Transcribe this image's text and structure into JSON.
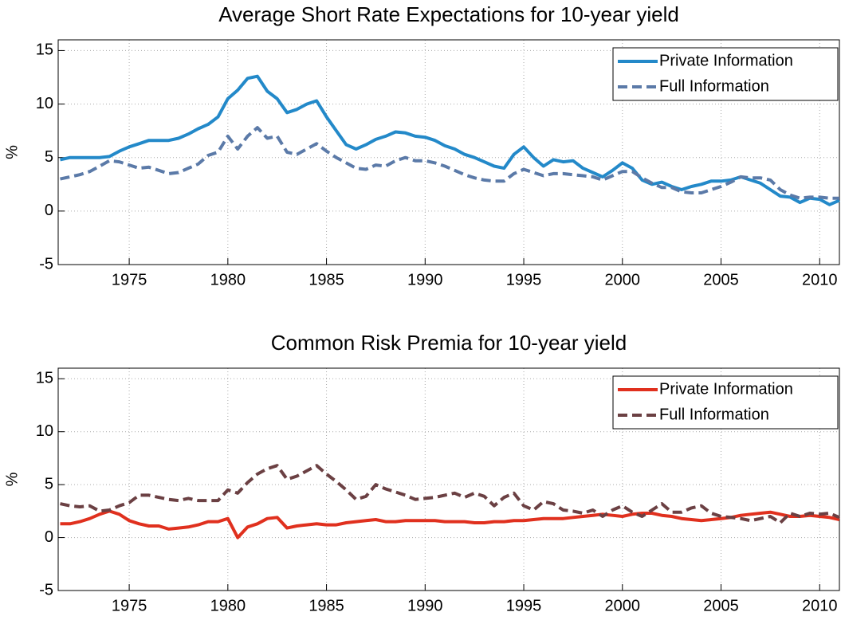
{
  "chart_data": [
    {
      "type": "line",
      "title": "Average Short Rate Expectations for 10-year yield",
      "ylabel": "%",
      "x": [
        1971.5,
        1972,
        1972.5,
        1973,
        1973.5,
        1974,
        1974.5,
        1975,
        1975.5,
        1976,
        1976.5,
        1977,
        1977.5,
        1978,
        1978.5,
        1979,
        1979.5,
        1980,
        1980.5,
        1981,
        1981.5,
        1982,
        1982.5,
        1983,
        1983.5,
        1984,
        1984.5,
        1985,
        1985.5,
        1986,
        1986.5,
        1987,
        1987.5,
        1988,
        1988.5,
        1989,
        1989.5,
        1990,
        1990.5,
        1991,
        1991.5,
        1992,
        1992.5,
        1993,
        1993.5,
        1994,
        1994.5,
        1995,
        1995.5,
        1996,
        1996.5,
        1997,
        1997.5,
        1998,
        1998.5,
        1999,
        1999.5,
        2000,
        2000.5,
        2001,
        2001.5,
        2002,
        2002.5,
        2003,
        2003.5,
        2004,
        2004.5,
        2005,
        2005.5,
        2006,
        2006.5,
        2007,
        2007.5,
        2008,
        2008.5,
        2009,
        2009.5,
        2010,
        2010.5,
        2011
      ],
      "series": [
        {
          "name": "Private Information",
          "color": "#2389c9",
          "linestyle": "solid",
          "values": [
            4.8,
            5.0,
            5.0,
            5.0,
            5.0,
            5.1,
            5.6,
            6.0,
            6.3,
            6.6,
            6.6,
            6.6,
            6.8,
            7.2,
            7.7,
            8.1,
            8.8,
            10.5,
            11.3,
            12.4,
            12.6,
            11.2,
            10.5,
            9.2,
            9.5,
            10.0,
            10.3,
            8.8,
            7.5,
            6.2,
            5.8,
            6.2,
            6.7,
            7.0,
            7.4,
            7.3,
            7.0,
            6.9,
            6.6,
            6.1,
            5.8,
            5.3,
            5.0,
            4.6,
            4.2,
            4.0,
            5.3,
            6.0,
            5.0,
            4.2,
            4.8,
            4.6,
            4.7,
            4.0,
            3.6,
            3.2,
            3.8,
            4.5,
            4.0,
            2.9,
            2.5,
            2.7,
            2.3,
            2.0,
            2.3,
            2.5,
            2.8,
            2.8,
            2.9,
            3.2,
            2.9,
            2.6,
            2.0,
            1.4,
            1.3,
            0.8,
            1.2,
            1.1,
            0.6,
            1.0
          ]
        },
        {
          "name": "Full Information",
          "color": "#5b7aa8",
          "linestyle": "dashed",
          "values": [
            3.0,
            3.2,
            3.4,
            3.7,
            4.2,
            4.7,
            4.6,
            4.3,
            4.0,
            4.1,
            3.8,
            3.5,
            3.6,
            4.0,
            4.4,
            5.2,
            5.5,
            7.0,
            5.8,
            7.0,
            7.8,
            6.8,
            7.0,
            5.5,
            5.3,
            5.8,
            6.3,
            5.6,
            5.0,
            4.5,
            4.0,
            3.9,
            4.3,
            4.2,
            4.7,
            5.0,
            4.7,
            4.7,
            4.5,
            4.2,
            3.8,
            3.4,
            3.1,
            2.9,
            2.8,
            2.8,
            3.5,
            3.9,
            3.6,
            3.3,
            3.5,
            3.5,
            3.4,
            3.3,
            3.2,
            2.9,
            3.3,
            3.7,
            3.7,
            3.1,
            2.6,
            2.2,
            2.2,
            1.8,
            1.7,
            1.7,
            2.0,
            2.3,
            2.7,
            3.2,
            3.1,
            3.1,
            2.9,
            2.0,
            1.5,
            1.2,
            1.3,
            1.3,
            1.2,
            1.2
          ]
        }
      ],
      "xlim": [
        1971.4,
        2011
      ],
      "ylim": [
        -5,
        16
      ],
      "xticks": [
        1975,
        1980,
        1985,
        1990,
        1995,
        2000,
        2005,
        2010
      ],
      "yticks": [
        -5,
        0,
        5,
        10,
        15
      ],
      "grid": true,
      "legend": "upper right"
    },
    {
      "type": "line",
      "title": "Common Risk Premia for 10-year yield",
      "ylabel": "%",
      "x": [
        1971.5,
        1972,
        1972.5,
        1973,
        1973.5,
        1974,
        1974.5,
        1975,
        1975.5,
        1976,
        1976.5,
        1977,
        1977.5,
        1978,
        1978.5,
        1979,
        1979.5,
        1980,
        1980.5,
        1981,
        1981.5,
        1982,
        1982.5,
        1983,
        1983.5,
        1984,
        1984.5,
        1985,
        1985.5,
        1986,
        1986.5,
        1987,
        1987.5,
        1988,
        1988.5,
        1989,
        1989.5,
        1990,
        1990.5,
        1991,
        1991.5,
        1992,
        1992.5,
        1993,
        1993.5,
        1994,
        1994.5,
        1995,
        1995.5,
        1996,
        1996.5,
        1997,
        1997.5,
        1998,
        1998.5,
        1999,
        1999.5,
        2000,
        2000.5,
        2001,
        2001.5,
        2002,
        2002.5,
        2003,
        2003.5,
        2004,
        2004.5,
        2005,
        2005.5,
        2006,
        2006.5,
        2007,
        2007.5,
        2008,
        2008.5,
        2009,
        2009.5,
        2010,
        2010.5,
        2011
      ],
      "series": [
        {
          "name": "Private Information",
          "color": "#e0301e",
          "linestyle": "solid",
          "values": [
            1.3,
            1.3,
            1.5,
            1.8,
            2.2,
            2.5,
            2.2,
            1.6,
            1.3,
            1.1,
            1.1,
            0.8,
            0.9,
            1.0,
            1.2,
            1.5,
            1.5,
            1.8,
            0.0,
            1.0,
            1.3,
            1.8,
            1.9,
            0.9,
            1.1,
            1.2,
            1.3,
            1.2,
            1.2,
            1.4,
            1.5,
            1.6,
            1.7,
            1.5,
            1.5,
            1.6,
            1.6,
            1.6,
            1.6,
            1.5,
            1.5,
            1.5,
            1.4,
            1.4,
            1.5,
            1.5,
            1.6,
            1.6,
            1.7,
            1.8,
            1.8,
            1.8,
            1.9,
            2.0,
            2.1,
            2.2,
            2.1,
            2.0,
            2.2,
            2.3,
            2.3,
            2.1,
            2.0,
            1.8,
            1.7,
            1.6,
            1.7,
            1.8,
            1.9,
            2.1,
            2.2,
            2.3,
            2.4,
            2.2,
            2.0,
            2.0,
            2.1,
            2.0,
            1.9,
            1.7
          ]
        },
        {
          "name": "Full Information",
          "color": "#6b4043",
          "linestyle": "dashed",
          "values": [
            3.2,
            3.0,
            2.9,
            3.0,
            2.5,
            2.6,
            3.0,
            3.3,
            4.0,
            4.0,
            3.8,
            3.6,
            3.5,
            3.7,
            3.5,
            3.5,
            3.5,
            4.5,
            4.2,
            5.2,
            6.0,
            6.5,
            6.8,
            5.5,
            5.8,
            6.3,
            6.8,
            6.0,
            5.3,
            4.5,
            3.6,
            3.9,
            5.0,
            4.6,
            4.3,
            4.0,
            3.6,
            3.7,
            3.8,
            4.0,
            4.2,
            3.8,
            4.2,
            3.9,
            3.0,
            3.8,
            4.2,
            3.0,
            2.6,
            3.4,
            3.2,
            2.6,
            2.5,
            2.3,
            2.6,
            2.0,
            2.6,
            3.0,
            2.4,
            2.0,
            2.6,
            3.2,
            2.4,
            2.4,
            2.8,
            3.0,
            2.3,
            2.0,
            1.9,
            1.8,
            1.6,
            1.8,
            2.0,
            1.4,
            2.3,
            2.0,
            2.3,
            2.2,
            2.3,
            1.9
          ]
        }
      ],
      "xlim": [
        1971.4,
        2011
      ],
      "ylim": [
        -5,
        16
      ],
      "xticks": [
        1975,
        1980,
        1985,
        1990,
        1995,
        2000,
        2005,
        2010
      ],
      "yticks": [
        -5,
        0,
        5,
        10,
        15
      ],
      "grid": true,
      "legend": "upper right"
    }
  ]
}
